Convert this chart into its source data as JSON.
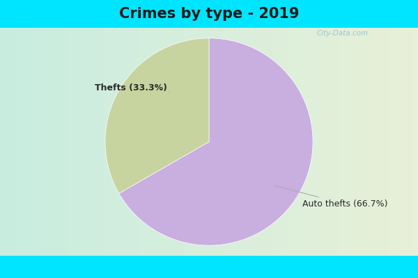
{
  "title": "Crimes by type - 2019",
  "slices": [
    66.7,
    33.3
  ],
  "labels": [
    "Auto thefts (66.7%)",
    "Thefts (33.3%)"
  ],
  "colors": [
    "#c9aee0",
    "#c8d4a0"
  ],
  "startangle": 90,
  "cyan_bar_color": "#00e5ff",
  "bg_color_left": "#c8ede0",
  "bg_color_right": "#e8f0d8",
  "watermark": "City-Data.com",
  "title_fontsize": 15,
  "label_fontsize": 9
}
